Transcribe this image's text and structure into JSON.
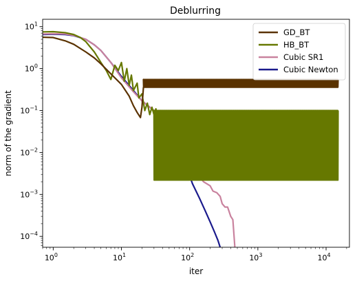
{
  "chart_data": {
    "type": "line",
    "title": "Deblurring",
    "xlabel": "iter",
    "ylabel": "norm of the gradient",
    "xscale": "log",
    "yscale": "log",
    "xlim": [
      0.7,
      22000
    ],
    "ylim": [
      5.5e-05,
      15
    ],
    "grid": false,
    "legend_position": "top-right",
    "x_ticks": [
      {
        "value": 1,
        "base": "10",
        "exp": "0"
      },
      {
        "value": 10,
        "base": "10",
        "exp": "1"
      },
      {
        "value": 100,
        "base": "10",
        "exp": "2"
      },
      {
        "value": 1000,
        "base": "10",
        "exp": "3"
      },
      {
        "value": 10000,
        "base": "10",
        "exp": "4"
      }
    ],
    "y_ticks": [
      {
        "value": 0.0001,
        "base": "10",
        "exp": "−4"
      },
      {
        "value": 0.001,
        "base": "10",
        "exp": "−3"
      },
      {
        "value": 0.01,
        "base": "10",
        "exp": "−2"
      },
      {
        "value": 0.1,
        "base": "10",
        "exp": "−1"
      },
      {
        "value": 1,
        "base": "10",
        "exp": "0"
      },
      {
        "value": 10,
        "base": "10",
        "exp": "1"
      }
    ],
    "series": [
      {
        "name": "GD_BT",
        "color": "#5a3200",
        "points": [
          [
            0.7,
            5.6
          ],
          [
            1,
            5.5
          ],
          [
            1.5,
            4.6
          ],
          [
            2,
            3.8
          ],
          [
            3,
            2.5
          ],
          [
            4,
            1.8
          ],
          [
            5,
            1.3
          ],
          [
            7,
            0.75
          ],
          [
            10,
            0.42
          ],
          [
            13,
            0.22
          ],
          [
            15,
            0.13
          ],
          [
            17,
            0.09
          ],
          [
            19,
            0.068
          ],
          [
            20,
            0.12
          ],
          [
            21,
            0.35
          ],
          [
            22,
            0.5
          ]
        ],
        "band": {
          "x": [
            21,
            15000
          ],
          "low": 0.36,
          "high": 0.55
        }
      },
      {
        "name": "HB_BT",
        "color": "#667800",
        "points": [
          [
            0.7,
            7.5
          ],
          [
            1,
            7.6
          ],
          [
            1.5,
            7.2
          ],
          [
            2,
            6.5
          ],
          [
            2.5,
            5.5
          ],
          [
            3,
            4.4
          ],
          [
            4,
            2.5
          ],
          [
            5,
            1.4
          ],
          [
            6,
            0.9
          ],
          [
            7,
            0.55
          ],
          [
            8,
            1.2
          ],
          [
            9,
            0.9
          ],
          [
            10,
            1.4
          ],
          [
            11,
            0.5
          ],
          [
            12,
            1.0
          ],
          [
            13,
            0.4
          ],
          [
            14,
            0.7
          ],
          [
            15,
            0.3
          ],
          [
            17,
            0.45
          ],
          [
            18,
            0.2
          ],
          [
            20,
            0.25
          ],
          [
            22,
            0.1
          ],
          [
            24,
            0.15
          ],
          [
            26,
            0.08
          ],
          [
            28,
            0.12
          ],
          [
            30,
            0.08
          ],
          [
            32,
            0.11
          ],
          [
            35,
            0.06
          ],
          [
            38,
            0.1
          ],
          [
            40,
            0.05
          ],
          [
            45,
            0.09
          ],
          [
            50,
            0.04
          ]
        ],
        "band": {
          "x": [
            30,
            15000
          ],
          "low": 0.0022,
          "high": 0.1
        }
      },
      {
        "name": "Cubic SR1",
        "color": "#c9829e",
        "points": [
          [
            0.7,
            6.7
          ],
          [
            1,
            6.8
          ],
          [
            1.5,
            6.7
          ],
          [
            2,
            6.2
          ],
          [
            3,
            5.0
          ],
          [
            4,
            3.7
          ],
          [
            5,
            2.7
          ],
          [
            7,
            1.4
          ],
          [
            10,
            0.6
          ],
          [
            15,
            0.28
          ],
          [
            20,
            0.17
          ],
          [
            30,
            0.1
          ],
          [
            40,
            0.07
          ],
          [
            50,
            0.04
          ],
          [
            60,
            0.022
          ],
          [
            70,
            0.014
          ],
          [
            80,
            0.009
          ],
          [
            100,
            0.006
          ],
          [
            110,
            0.0045
          ],
          [
            130,
            0.003
          ],
          [
            160,
            0.002
          ],
          [
            200,
            0.0016
          ],
          [
            220,
            0.0012
          ],
          [
            250,
            0.0011
          ],
          [
            280,
            0.0009
          ],
          [
            300,
            0.0006
          ],
          [
            330,
            0.0005
          ],
          [
            360,
            0.0005
          ],
          [
            400,
            0.0003
          ],
          [
            430,
            0.00025
          ],
          [
            460,
            5.5e-05
          ]
        ]
      },
      {
        "name": "Cubic Newton",
        "color": "#1a1a8c",
        "points": [
          [
            0.7,
            6.5
          ],
          [
            1,
            6.6
          ],
          [
            1.5,
            6.5
          ],
          [
            2,
            6.1
          ],
          [
            3,
            5.0
          ],
          [
            4,
            3.7
          ],
          [
            5,
            2.7
          ],
          [
            7,
            1.4
          ],
          [
            10,
            0.65
          ],
          [
            15,
            0.3
          ],
          [
            20,
            0.17
          ],
          [
            30,
            0.1
          ],
          [
            40,
            0.06
          ],
          [
            50,
            0.035
          ],
          [
            70,
            0.012
          ],
          [
            90,
            0.0045
          ],
          [
            110,
            0.0018
          ],
          [
            140,
            0.0008
          ],
          [
            170,
            0.0004
          ],
          [
            200,
            0.00022
          ],
          [
            230,
            0.00013
          ],
          [
            260,
            8e-05
          ],
          [
            280,
            5.5e-05
          ]
        ]
      }
    ]
  }
}
